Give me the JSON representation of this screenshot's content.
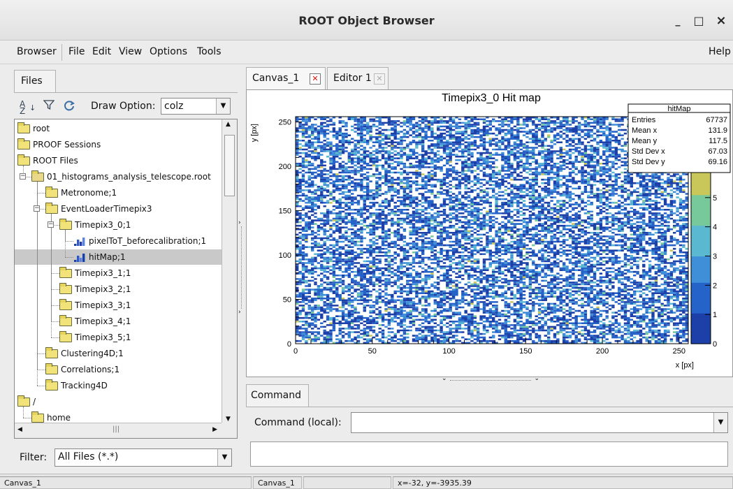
{
  "window": {
    "title": "ROOT Object Browser",
    "min_label": "_",
    "max_label": "□",
    "close_label": "×"
  },
  "menu": {
    "browser": "Browser",
    "file": "File",
    "edit": "Edit",
    "view": "View",
    "options": "Options",
    "tools": "Tools",
    "help": "Help"
  },
  "left": {
    "tab": "Files",
    "draw_option_label": "Draw Option:",
    "draw_option_value": "colz",
    "tree": [
      {
        "label": "root",
        "depth": 0,
        "icon": "folder-icon"
      },
      {
        "label": "PROOF Sessions",
        "depth": 0,
        "icon": "folder-icon"
      },
      {
        "label": "ROOT Files",
        "depth": 0,
        "icon": "folder-icon"
      },
      {
        "label": "01_histograms_analysis_telescope.root",
        "depth": 1,
        "icon": "rootfile-icon"
      },
      {
        "label": "Metronome;1",
        "depth": 2,
        "icon": "folder-icon"
      },
      {
        "label": "EventLoaderTimepix3",
        "depth": 2,
        "icon": "folder-icon"
      },
      {
        "label": "Timepix3_0;1",
        "depth": 3,
        "icon": "folder-icon"
      },
      {
        "label": "pixelToT_beforecalibration;1",
        "depth": 4,
        "icon": "histogram-icon"
      },
      {
        "label": "hitMap;1",
        "depth": 4,
        "icon": "histogram2d-icon"
      },
      {
        "label": "Timepix3_1;1",
        "depth": 3,
        "icon": "folder-icon"
      },
      {
        "label": "Timepix3_2;1",
        "depth": 3,
        "icon": "folder-icon"
      },
      {
        "label": "Timepix3_3;1",
        "depth": 3,
        "icon": "folder-icon"
      },
      {
        "label": "Timepix3_4;1",
        "depth": 3,
        "icon": "folder-icon"
      },
      {
        "label": "Timepix3_5;1",
        "depth": 3,
        "icon": "folder-icon"
      },
      {
        "label": "Clustering4D;1",
        "depth": 2,
        "icon": "folder-icon"
      },
      {
        "label": "Correlations;1",
        "depth": 2,
        "icon": "folder-icon"
      },
      {
        "label": "Tracking4D",
        "depth": 2,
        "icon": "folder-icon"
      },
      {
        "label": "/",
        "depth": 0,
        "icon": "folder-icon"
      },
      {
        "label": "home",
        "depth": 1,
        "icon": "folder-icon"
      }
    ],
    "filter_label": "Filter:",
    "filter_value": "All Files (*.*)"
  },
  "canvas_tabs": [
    {
      "label": "Canvas_1"
    },
    {
      "label": "Editor 1"
    }
  ],
  "plot": {
    "title": "Timepix3_0 Hit map",
    "xlabel": "x [px]",
    "ylabel": "y [px]",
    "xlim": [
      0,
      256
    ],
    "ylim": [
      0,
      256
    ],
    "xticks": [
      "0",
      "50",
      "100",
      "150",
      "200",
      "250"
    ],
    "yticks": [
      "0",
      "50",
      "100",
      "150",
      "200",
      "250"
    ],
    "zticks": [
      "0",
      "1",
      "2",
      "3",
      "4",
      "5"
    ],
    "stats": {
      "name": "hitMap",
      "rows": [
        {
          "k": "Entries",
          "v": "67737"
        },
        {
          "k": "Mean x",
          "v": "131.9"
        },
        {
          "k": "Mean y",
          "v": "117.5"
        },
        {
          "k": "Std Dev x",
          "v": "67.03"
        },
        {
          "k": "Std Dev y",
          "v": "69.16"
        }
      ]
    }
  },
  "chart_data": {
    "type": "heatmap",
    "title": "Timepix3_0 Hit map",
    "xlabel": "x [px]",
    "ylabel": "y [px]",
    "xlim": [
      0,
      256
    ],
    "ylim": [
      0,
      256
    ],
    "zlim": [
      0,
      6
    ],
    "stats": {
      "entries": 67737,
      "mean_x": 131.9,
      "mean_y": 117.5,
      "std_x": 67.03,
      "std_y": 69.16
    }
  },
  "command": {
    "tab": "Command",
    "label": "Command (local):",
    "value": ""
  },
  "status": {
    "left": "Canvas_1",
    "canvas": "Canvas_1",
    "empty": "",
    "coords": "x=-32, y=-3935.39"
  }
}
